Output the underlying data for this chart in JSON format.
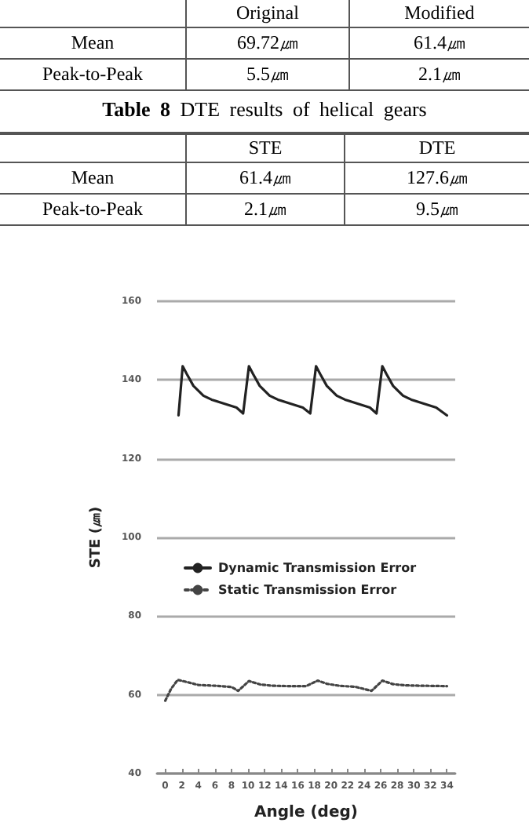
{
  "chart_data": [
    {
      "type": "other",
      "categories": [
        "Original",
        "Modified"
      ],
      "y_categories": [
        "Mean",
        "Peak-to-Peak"
      ],
      "cell_labels": [
        [
          "69.72㎛",
          "61.4㎛"
        ],
        [
          "5.5㎛",
          "2.1㎛"
        ]
      ]
    },
    {
      "type": "other",
      "title": "Table 8 DTE results of helical gears",
      "categories": [
        "STE",
        "DTE"
      ],
      "y_categories": [
        "Mean",
        "Peak-to-Peak"
      ],
      "cell_labels": [
        [
          "61.4㎛",
          "127.6㎛"
        ],
        [
          "2.1㎛",
          "9.5㎛"
        ]
      ]
    },
    {
      "type": "line",
      "xlabel": "Angle (deg)",
      "ylabel": "STE (㎛)",
      "xlim": [
        -1,
        35
      ],
      "xticks": [
        0,
        2,
        4,
        6,
        8,
        10,
        12,
        14,
        16,
        18,
        20,
        22,
        24,
        26,
        28,
        30,
        32,
        34
      ],
      "ylim": [
        40,
        160
      ],
      "yticks": [
        40,
        60,
        80,
        100,
        120,
        140,
        160
      ],
      "grid": "y",
      "legend": "center",
      "marker": "none",
      "series": [
        {
          "name": "Dynamic Transmission Error",
          "color": "#222222",
          "line_style": "solid",
          "x": [
            1.6,
            2.1,
            2.6,
            3.4,
            4.6,
            5.6,
            7.1,
            8.6,
            9.4,
            10.1,
            10.6,
            11.4,
            12.6,
            13.6,
            15.1,
            16.6,
            17.5,
            18.2,
            18.7,
            19.5,
            20.7,
            21.7,
            23.2,
            24.7,
            25.5,
            26.2,
            26.7,
            27.5,
            28.7,
            29.7,
            31.2,
            32.7,
            34
          ],
          "values": [
            131,
            143.5,
            141.5,
            138.5,
            136,
            135,
            134,
            133,
            131.5,
            143.5,
            141.5,
            138.5,
            136,
            135,
            134,
            133,
            131.5,
            143.5,
            141.5,
            138.5,
            136,
            135,
            134,
            133,
            131.5,
            143.5,
            141.5,
            138.5,
            136,
            135,
            134,
            133,
            131
          ]
        },
        {
          "name": "Static Transmission Error",
          "color": "#444444",
          "line_style": "dotted",
          "x": [
            0,
            0.7,
            1.5,
            2.5,
            4,
            6,
            8,
            8.8,
            10.1,
            11.5,
            13,
            15,
            17,
            18.4,
            19.5,
            21,
            23,
            24.9,
            26.2,
            27.5,
            29,
            31,
            34
          ],
          "values": [
            58.5,
            61.5,
            63.8,
            63.3,
            62.5,
            62.3,
            62,
            61,
            63.5,
            62.6,
            62.3,
            62.2,
            62.2,
            63.6,
            62.8,
            62.3,
            62,
            61,
            63.6,
            62.7,
            62.4,
            62.3,
            62.2
          ]
        }
      ]
    }
  ]
}
